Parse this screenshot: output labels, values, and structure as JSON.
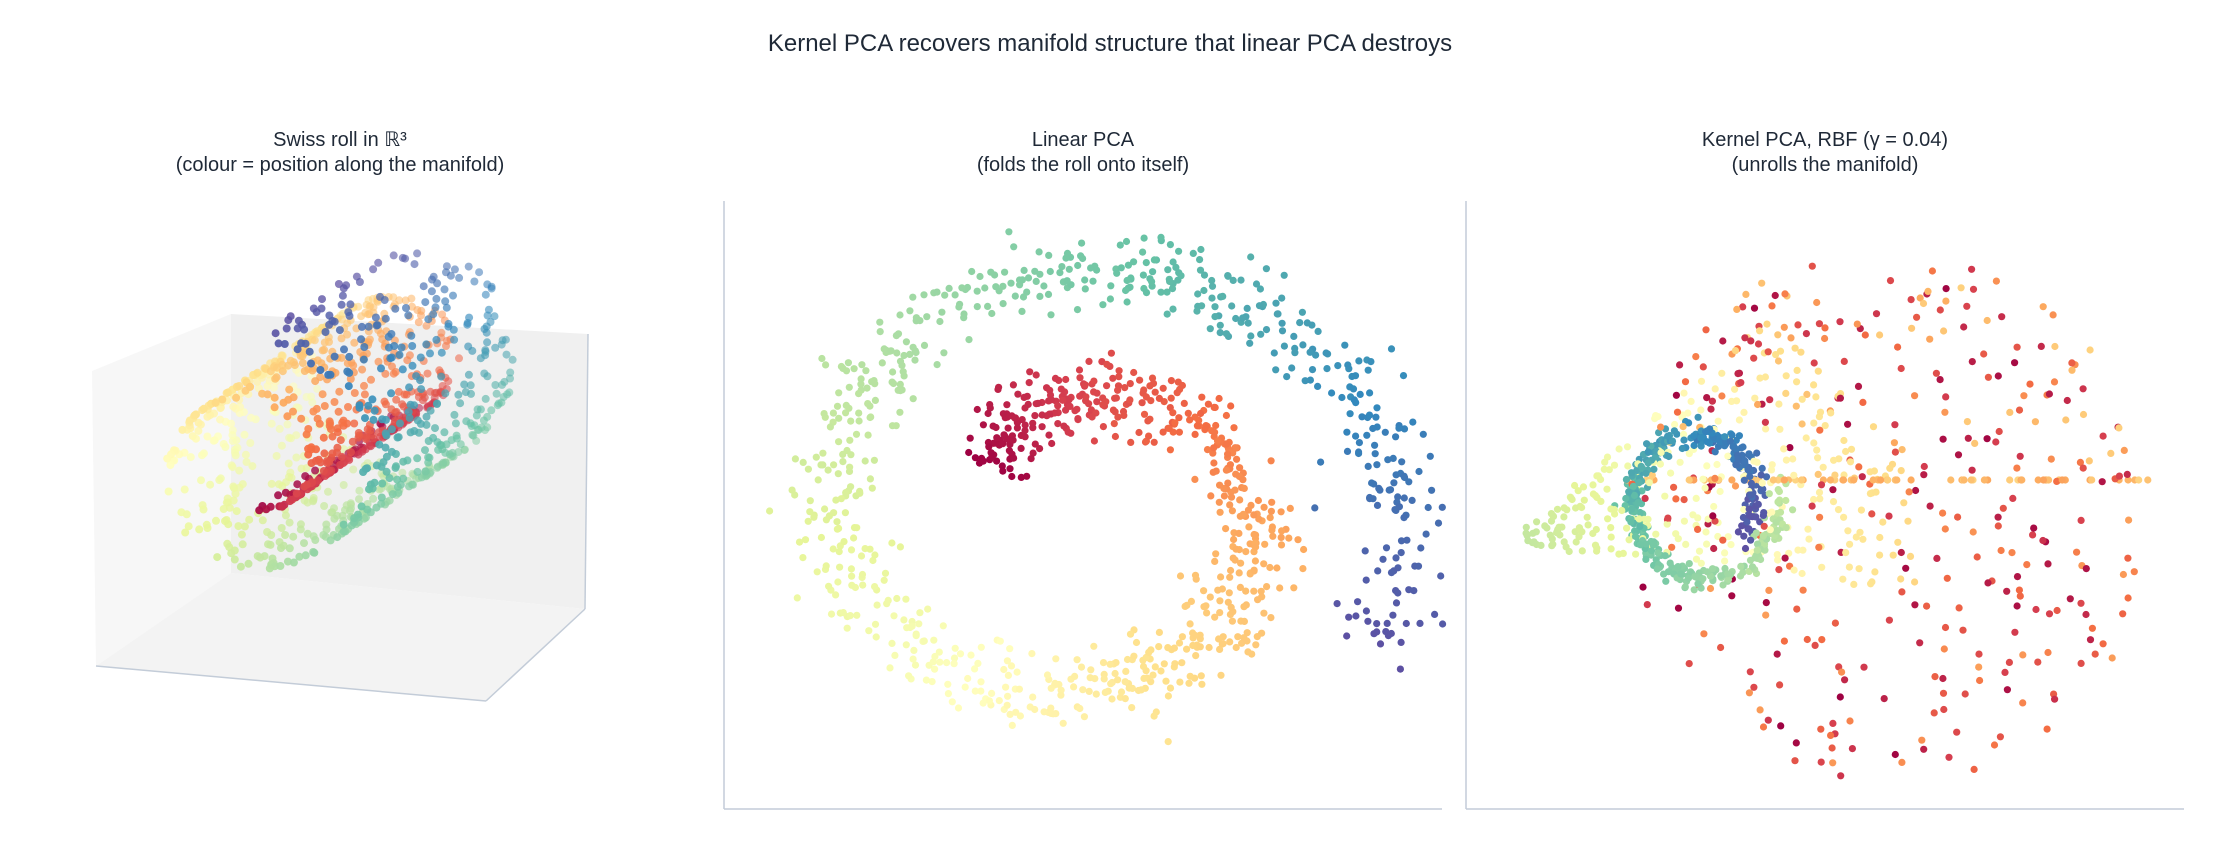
{
  "figure": {
    "title": "Kernel PCA recovers manifold structure that linear PCA destroys"
  },
  "chart_data": [
    {
      "type": "scatter",
      "projection": "3d",
      "title": "Swiss roll in ℝ³",
      "subtitle": "(colour = position along the manifold)",
      "colormap": "Spectral",
      "axes_visible": false,
      "grid": false
    },
    {
      "type": "scatter",
      "title": "Linear PCA",
      "subtitle": "(folds the roll onto itself)",
      "colormap": "Spectral",
      "ticks_visible": false,
      "grid": false
    },
    {
      "type": "scatter",
      "title": "Kernel PCA, RBF (γ = 0.04)",
      "subtitle": "(unrolls the manifold)",
      "kernel": "RBF",
      "gamma": 0.04,
      "colormap": "Spectral",
      "ticks_visible": false,
      "grid": false
    }
  ],
  "colors": {
    "text": "#1f2937",
    "spine": "#c3ccd8",
    "pane": "#f2f2f2",
    "spectral": [
      "#9e0142",
      "#d53e4f",
      "#f46d43",
      "#fdae61",
      "#fee08b",
      "#ffffbf",
      "#e6f598",
      "#abdda4",
      "#66c2a5",
      "#3288bd",
      "#5e4fa2"
    ]
  }
}
